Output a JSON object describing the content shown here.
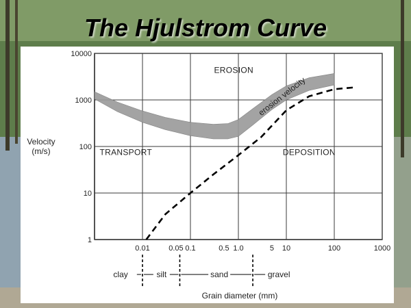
{
  "title": "The Hjulstrom Curve",
  "colors": {
    "grid": "#3a3a3a",
    "band": "#9a9a9a",
    "curve": "#000000",
    "panel": "#ffffff"
  },
  "chart_data": {
    "type": "line",
    "title": "The Hjulstrom Curve",
    "xlabel": "Grain diameter (mm)",
    "ylabel": "Velocity\n(m/s)",
    "xscale": "log",
    "yscale": "log",
    "xlim": [
      0.001,
      1000
    ],
    "ylim": [
      1,
      10000
    ],
    "grid": true,
    "x_ticks": [
      {
        "value": 0.01,
        "label": "0.01"
      },
      {
        "value": 0.05,
        "label": "0.05"
      },
      {
        "value": 0.1,
        "label": "0.1"
      },
      {
        "value": 0.5,
        "label": "0.5"
      },
      {
        "value": 1,
        "label": "1.0"
      },
      {
        "value": 5,
        "label": "5"
      },
      {
        "value": 10,
        "label": "10"
      },
      {
        "value": 100,
        "label": "100"
      },
      {
        "value": 1000,
        "label": "1000"
      }
    ],
    "y_ticks": [
      {
        "value": 1,
        "label": "1"
      },
      {
        "value": 10,
        "label": "10"
      },
      {
        "value": 100,
        "label": "100"
      },
      {
        "value": 1000,
        "label": "1000"
      },
      {
        "value": 10000,
        "label": "10000"
      }
    ],
    "series": [
      {
        "name": "erosion velocity",
        "style": "band",
        "x": [
          0.001,
          0.003,
          0.01,
          0.03,
          0.1,
          0.3,
          0.6,
          1,
          2,
          5,
          10,
          30,
          100
        ],
        "upper": [
          1500,
          900,
          580,
          420,
          330,
          300,
          310,
          380,
          650,
          1300,
          2000,
          3000,
          3700
        ],
        "lower": [
          1050,
          560,
          330,
          230,
          170,
          145,
          145,
          165,
          290,
          620,
          1000,
          1600,
          2100
        ]
      },
      {
        "name": "",
        "style": "dashed",
        "x": [
          0.012,
          0.03,
          0.1,
          0.3,
          1,
          3,
          10,
          30,
          100,
          250
        ],
        "y": [
          1,
          3.5,
          10,
          25,
          65,
          160,
          600,
          1200,
          1700,
          1850
        ]
      }
    ],
    "regions": [
      {
        "label": "EROSION",
        "x": 0.8,
        "y": 3800
      },
      {
        "label": "TRANSPORT",
        "x": 0.0045,
        "y": 65
      },
      {
        "label": "DEPOSITION",
        "x": 30,
        "y": 65
      }
    ],
    "annotations": [
      {
        "label": "erosion velocity",
        "x": 10,
        "y": 1500
      }
    ],
    "grain_classes": {
      "boundaries": [
        0.01,
        0.06,
        2
      ],
      "labels": [
        {
          "label": "clay",
          "x": 0.0035
        },
        {
          "label": "silt",
          "x": 0.025
        },
        {
          "label": "sand",
          "x": 0.4
        },
        {
          "label": "gravel",
          "x": 7
        }
      ]
    }
  }
}
